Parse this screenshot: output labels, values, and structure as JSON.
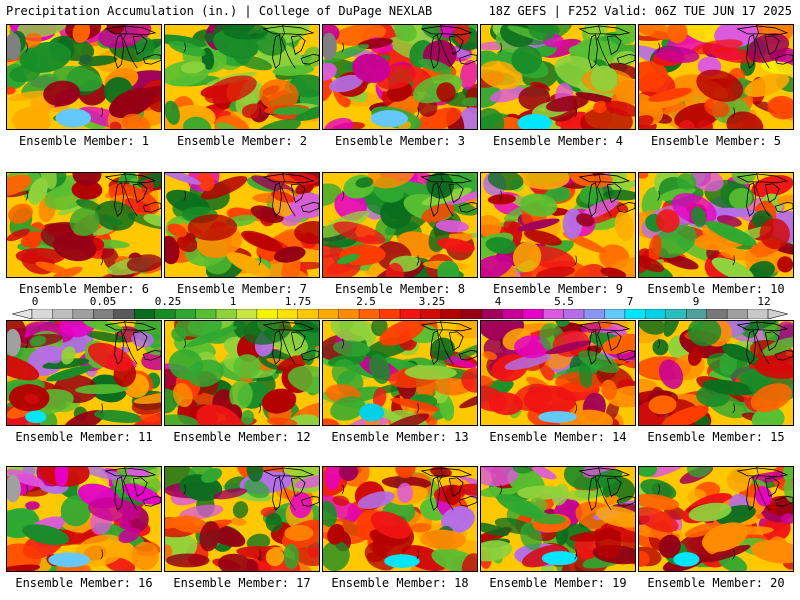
{
  "header": {
    "title": "Precipitation Accumulation (in.) | College of DuPage NEXLAB",
    "run_info": "18Z GEFS | F252 Valid: 06Z TUE JUN 17 2025"
  },
  "members": [
    {
      "label": "Ensemble Member: 1"
    },
    {
      "label": "Ensemble Member: 2"
    },
    {
      "label": "Ensemble Member: 3"
    },
    {
      "label": "Ensemble Member: 4"
    },
    {
      "label": "Ensemble Member: 5"
    },
    {
      "label": "Ensemble Member: 6"
    },
    {
      "label": "Ensemble Member: 7"
    },
    {
      "label": "Ensemble Member: 8"
    },
    {
      "label": "Ensemble Member: 9"
    },
    {
      "label": "Ensemble Member: 10"
    },
    {
      "label": "Ensemble Member: 11"
    },
    {
      "label": "Ensemble Member: 12"
    },
    {
      "label": "Ensemble Member: 13"
    },
    {
      "label": "Ensemble Member: 14"
    },
    {
      "label": "Ensemble Member: 15"
    },
    {
      "label": "Ensemble Member: 16"
    },
    {
      "label": "Ensemble Member: 17"
    },
    {
      "label": "Ensemble Member: 18"
    },
    {
      "label": "Ensemble Member: 19"
    },
    {
      "label": "Ensemble Member: 20"
    }
  ],
  "legend": {
    "tick_labels": [
      "0",
      "0.05",
      "0.25",
      "1",
      "1.75",
      "2.5",
      "3.25",
      "4",
      "5.5",
      "7",
      "9",
      "12"
    ],
    "colors": [
      "#d9d9d9",
      "#bdbdbd",
      "#a0a0a0",
      "#808080",
      "#5a5a5a",
      "#0a6e1e",
      "#198c28",
      "#2ea832",
      "#58bf32",
      "#8fd23c",
      "#c8e646",
      "#f5f500",
      "#ffe100",
      "#ffc800",
      "#ffaa00",
      "#ff8c00",
      "#ff6400",
      "#ff3c00",
      "#f01414",
      "#d20a0a",
      "#b40000",
      "#960014",
      "#a0005a",
      "#c80096",
      "#e600c8",
      "#dc5adc",
      "#b46ee6",
      "#8c96f0",
      "#64c8fa",
      "#00e6ff",
      "#00d2e6",
      "#28bebe",
      "#50a0a0",
      "#787878",
      "#a0a0a0",
      "#c8c8c8"
    ]
  }
}
